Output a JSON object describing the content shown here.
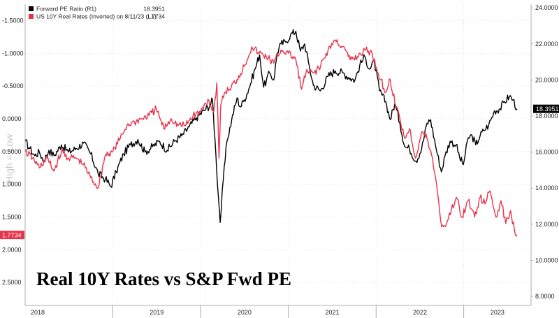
{
  "chart_data": {
    "type": "line",
    "title": "",
    "annotation": "Real 10Y Rates vs S&P Fwd PE",
    "watermark_text": "High = Low",
    "x_labels": [
      "2018",
      "2019",
      "2020",
      "2021",
      "2022",
      "2023"
    ],
    "xlim": [
      "2018-01-01",
      "2023-08-11"
    ],
    "y_left": {
      "inverted": true,
      "range": [
        -1.75,
        2.85
      ],
      "ticks": [
        "-1.5000",
        "-1.0000",
        "-0.5000",
        "0.0000",
        "0.5000",
        "1.0000",
        "1.5000",
        "2.0000",
        "2.5000"
      ],
      "tick_values": [
        -1.5,
        -1.0,
        -0.5,
        0.0,
        0.5,
        1.0,
        1.5,
        2.0,
        2.5
      ]
    },
    "y_right": {
      "range": [
        7.5,
        24.2
      ],
      "ticks": [
        "24.0000",
        "22.0000",
        "20.0000",
        "18.0000",
        "16.0000",
        "14.0000",
        "12.0000",
        "10.0000",
        "8.0000"
      ],
      "tick_values": [
        24,
        22,
        20,
        18,
        16,
        14,
        12,
        10,
        8
      ]
    },
    "grid": true,
    "legend_position": "top-left",
    "series": [
      {
        "name": "Forward PE Ratio (R1)",
        "last_value_label": "18.3951",
        "axis": "right",
        "color": "#000000",
        "x": [
          "2018-01-01",
          "2018-01-20",
          "2018-02-10",
          "2018-03-01",
          "2018-03-20",
          "2018-04-10",
          "2018-05-01",
          "2018-06-01",
          "2018-07-01",
          "2018-08-01",
          "2018-09-01",
          "2018-10-01",
          "2018-11-01",
          "2018-12-01",
          "2018-12-24",
          "2019-01-15",
          "2019-02-15",
          "2019-03-15",
          "2019-04-15",
          "2019-05-15",
          "2019-06-15",
          "2019-07-15",
          "2019-08-15",
          "2019-09-15",
          "2019-10-15",
          "2019-11-15",
          "2019-12-15",
          "2020-01-15",
          "2020-02-10",
          "2020-02-20",
          "2020-03-05",
          "2020-03-15",
          "2020-03-23",
          "2020-04-05",
          "2020-04-20",
          "2020-05-10",
          "2020-06-01",
          "2020-06-15",
          "2020-07-01",
          "2020-07-20",
          "2020-08-15",
          "2020-09-03",
          "2020-09-20",
          "2020-10-15",
          "2020-11-01",
          "2020-11-15",
          "2020-12-01",
          "2020-12-20",
          "2021-01-10",
          "2021-02-01",
          "2021-02-20",
          "2021-03-10",
          "2021-03-25",
          "2021-04-15",
          "2021-05-15",
          "2021-06-15",
          "2021-07-15",
          "2021-08-15",
          "2021-09-15",
          "2021-10-05",
          "2021-10-25",
          "2021-11-15",
          "2021-12-05",
          "2021-12-25",
          "2022-01-15",
          "2022-02-10",
          "2022-03-01",
          "2022-03-20",
          "2022-04-10",
          "2022-05-01",
          "2022-05-20",
          "2022-06-16",
          "2022-07-10",
          "2022-08-01",
          "2022-08-16",
          "2022-09-05",
          "2022-09-30",
          "2022-10-15",
          "2022-11-05",
          "2022-11-30",
          "2022-12-15",
          "2022-12-30",
          "2023-01-20",
          "2023-02-05",
          "2023-02-20",
          "2023-03-10",
          "2023-03-25",
          "2023-04-15",
          "2023-05-10",
          "2023-06-01",
          "2023-06-20",
          "2023-07-10",
          "2023-07-25",
          "2023-08-11"
        ],
        "values": [
          16.6,
          16.2,
          15.8,
          16.0,
          15.5,
          16.1,
          15.8,
          16.4,
          16.0,
          16.2,
          16.5,
          15.9,
          14.8,
          14.5,
          14.1,
          14.9,
          15.9,
          16.4,
          16.7,
          16.0,
          16.3,
          16.6,
          16.1,
          16.6,
          16.9,
          17.4,
          17.9,
          18.3,
          18.6,
          18.9,
          15.9,
          13.6,
          12.1,
          14.5,
          16.6,
          17.8,
          19.0,
          18.5,
          18.9,
          19.5,
          20.6,
          21.4,
          19.6,
          20.4,
          20.0,
          21.5,
          22.0,
          22.1,
          22.5,
          22.7,
          21.6,
          22.0,
          21.0,
          19.7,
          19.4,
          20.2,
          20.5,
          20.4,
          20.1,
          20.0,
          20.8,
          21.3,
          20.6,
          21.0,
          19.4,
          18.8,
          17.8,
          18.7,
          17.6,
          16.3,
          16.2,
          15.5,
          16.2,
          17.6,
          17.8,
          16.4,
          14.9,
          15.8,
          16.6,
          16.4,
          15.7,
          15.3,
          16.8,
          16.9,
          16.4,
          16.9,
          17.2,
          17.5,
          18.3,
          18.4,
          18.8,
          19.1,
          18.9,
          18.4
        ]
      },
      {
        "name": "US 10Y Real Rates (Inverted) on 8/11/23 (L1)",
        "last_value_label": "1.7734",
        "axis": "left",
        "color": "#e8334a",
        "x": [
          "2018-01-01",
          "2018-02-01",
          "2018-03-01",
          "2018-04-01",
          "2018-05-01",
          "2018-06-01",
          "2018-07-01",
          "2018-08-01",
          "2018-09-01",
          "2018-10-01",
          "2018-11-01",
          "2018-12-01",
          "2019-01-01",
          "2019-02-01",
          "2019-03-01",
          "2019-04-01",
          "2019-05-01",
          "2019-06-01",
          "2019-07-01",
          "2019-08-01",
          "2019-09-01",
          "2019-10-01",
          "2019-11-01",
          "2019-12-01",
          "2020-01-01",
          "2020-02-01",
          "2020-02-25",
          "2020-03-09",
          "2020-03-18",
          "2020-03-25",
          "2020-04-10",
          "2020-05-01",
          "2020-06-01",
          "2020-07-01",
          "2020-08-01",
          "2020-09-01",
          "2020-10-01",
          "2020-11-01",
          "2020-12-01",
          "2021-01-01",
          "2021-02-01",
          "2021-02-25",
          "2021-03-15",
          "2021-04-15",
          "2021-05-15",
          "2021-06-15",
          "2021-07-15",
          "2021-08-15",
          "2021-09-15",
          "2021-10-15",
          "2021-11-15",
          "2021-12-15",
          "2022-01-10",
          "2022-02-10",
          "2022-03-01",
          "2022-03-20",
          "2022-04-10",
          "2022-05-01",
          "2022-05-20",
          "2022-06-14",
          "2022-07-10",
          "2022-08-01",
          "2022-08-20",
          "2022-09-10",
          "2022-10-01",
          "2022-10-21",
          "2022-11-10",
          "2022-12-01",
          "2022-12-25",
          "2023-01-20",
          "2023-02-15",
          "2023-03-10",
          "2023-03-30",
          "2023-04-20",
          "2023-05-15",
          "2023-06-05",
          "2023-06-25",
          "2023-07-15",
          "2023-07-31",
          "2023-08-11"
        ],
        "values": [
          0.5,
          0.6,
          0.75,
          0.6,
          0.8,
          0.5,
          0.6,
          0.6,
          0.7,
          0.9,
          1.05,
          0.55,
          0.5,
          0.3,
          0.1,
          0.05,
          0.0,
          -0.05,
          -0.15,
          0.15,
          0.0,
          0.1,
          0.1,
          -0.05,
          -0.1,
          -0.3,
          -0.1,
          -0.55,
          0.6,
          -0.2,
          -0.4,
          -0.45,
          -0.6,
          -0.8,
          -1.1,
          -1.0,
          -0.95,
          -0.85,
          -1.05,
          -1.0,
          -0.9,
          -0.45,
          -0.7,
          -0.7,
          -0.8,
          -1.05,
          -1.2,
          -1.1,
          -0.9,
          -0.95,
          -1.05,
          -1.0,
          -0.7,
          -0.4,
          -0.6,
          -0.25,
          0.0,
          0.3,
          0.15,
          0.6,
          0.2,
          0.3,
          0.55,
          1.0,
          1.65,
          1.6,
          1.4,
          1.2,
          1.5,
          1.25,
          1.5,
          1.2,
          1.3,
          1.1,
          1.5,
          1.25,
          1.6,
          1.4,
          1.7,
          1.7734
        ]
      }
    ]
  },
  "colors": {
    "pe": "#000000",
    "real_rates": "#e8334a",
    "grid": "#d9d9d9",
    "axis": "#999999"
  }
}
